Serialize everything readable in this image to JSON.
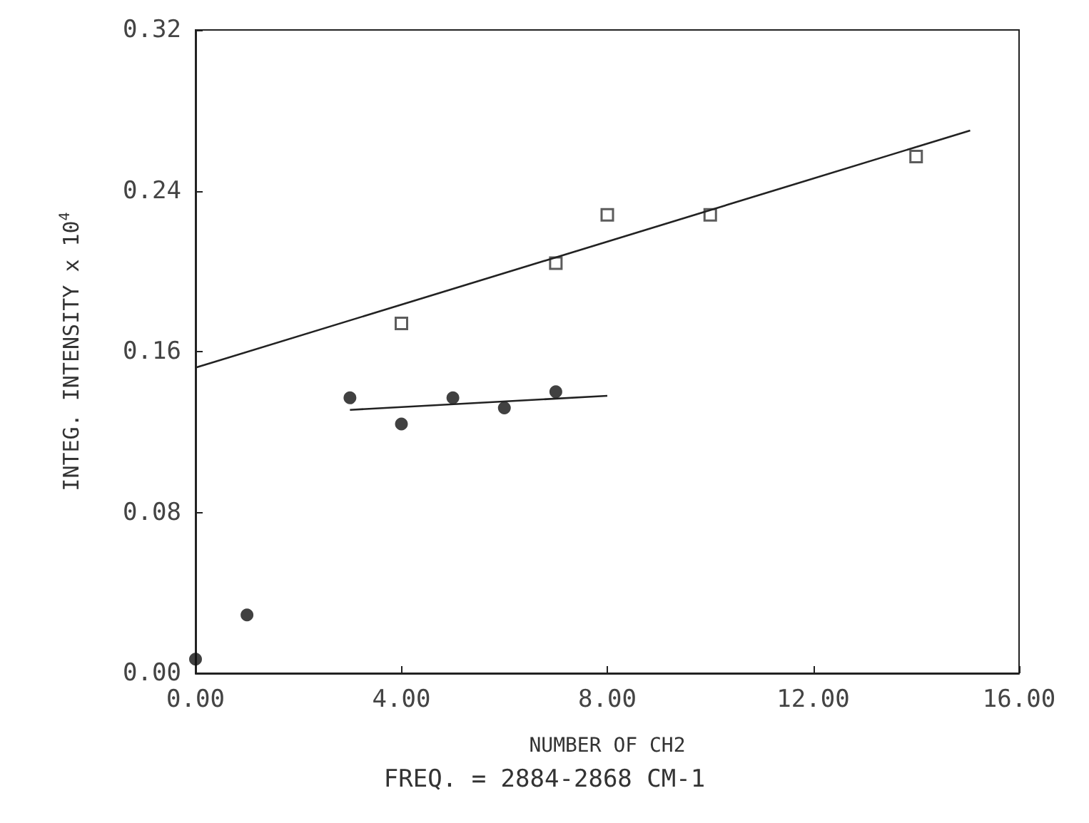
{
  "chart_data": {
    "type": "scatter",
    "xlabel": "NUMBER OF CH2",
    "ylabel": "INTEG. INTENSITY x 10$^{4}$",
    "annotations": [
      "FREQ. = 2884-2868 CM-1"
    ],
    "series": [
      {
        "marker": "square",
        "color": "#333333",
        "x": [
          4,
          7,
          8,
          10,
          14
        ],
        "values": [
          0.174,
          0.204,
          0.228,
          0.228,
          0.257
        ]
      },
      {
        "type": "line",
        "marker": "none",
        "color": "#222222",
        "x": [
          0,
          15.05
        ],
        "values": [
          0.152,
          0.27
        ]
      },
      {
        "marker": "circle",
        "color": "#111111",
        "x": [
          0,
          1,
          3,
          4,
          5,
          6,
          7
        ],
        "values": [
          0.007,
          0.029,
          0.137,
          0.124,
          0.137,
          0.132,
          0.14
        ]
      },
      {
        "type": "line",
        "marker": "none",
        "color": "#222222",
        "x": [
          3,
          8
        ],
        "values": [
          0.131,
          0.138
        ]
      }
    ],
    "xlim": [
      0,
      16
    ],
    "xticks": [
      {
        "value": 0,
        "label": "0.00"
      },
      {
        "value": 4,
        "label": "4.00"
      },
      {
        "value": 8,
        "label": "8.00"
      },
      {
        "value": 12,
        "label": "12.00"
      },
      {
        "value": 16,
        "label": "16.00"
      }
    ],
    "ylim": [
      0,
      0.32
    ],
    "yticks": [
      {
        "value": 0,
        "label": "0.00"
      },
      {
        "value": 0.08,
        "label": "0.08"
      },
      {
        "value": 0.16,
        "label": "0.16"
      },
      {
        "value": 0.24,
        "label": "0.24"
      },
      {
        "value": 0.32,
        "label": "0.32"
      }
    ],
    "grid": false
  }
}
